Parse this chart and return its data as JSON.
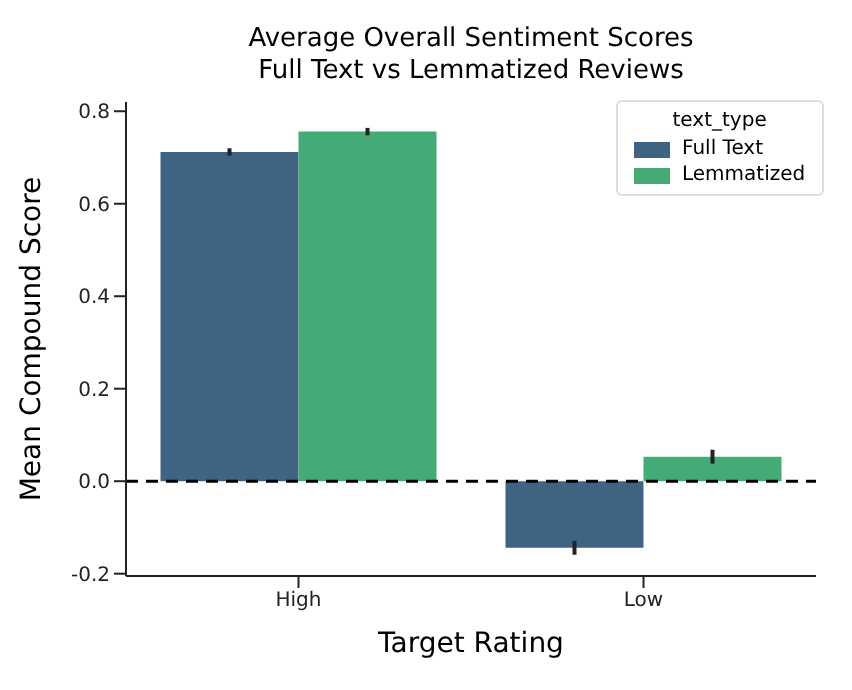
{
  "chart_data": {
    "type": "bar",
    "title": "Average Overall Sentiment Scores",
    "subtitle": "Full Text vs Lemmatized Reviews",
    "xlabel": "Target Rating",
    "ylabel": "Mean Compound Score",
    "legend_title": "text_type",
    "categories": [
      "High",
      "Low"
    ],
    "series": [
      {
        "name": "Full Text",
        "color": "#3e6383",
        "values": [
          0.712,
          -0.144
        ],
        "errors": [
          0.008,
          0.015
        ]
      },
      {
        "name": "Lemmatized",
        "color": "#45ab76",
        "values": [
          0.756,
          0.053
        ],
        "errors": [
          0.008,
          0.015
        ]
      }
    ],
    "ylim": [
      -0.205,
      0.82
    ],
    "yticks": [
      -0.2,
      {
        "value": 0,
        "label": "0.0"
      },
      0.2,
      0.4,
      0.6,
      0.8
    ],
    "ref_lines": [
      {
        "axis": "y",
        "value": 0,
        "color": "#000000",
        "line_style": "dashed"
      }
    ],
    "grid": false,
    "legend": "top right"
  }
}
